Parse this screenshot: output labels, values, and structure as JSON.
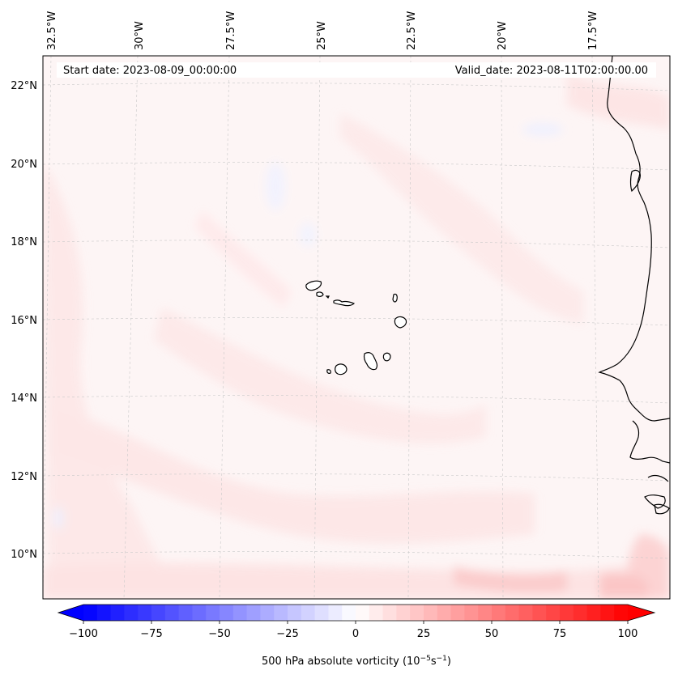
{
  "map": {
    "start_date": "Start date: 2023-08-09_00:00:00",
    "valid_date": "Valid_date: 2023-08-11T02:00:00.00",
    "lon_labels": [
      "32.5°W",
      "30°W",
      "27.5°W",
      "25°W",
      "22.5°W",
      "20°W",
      "17.5°W"
    ],
    "lat_labels": [
      "22°N",
      "20°N",
      "18°N",
      "16°N",
      "14°N",
      "12°N",
      "10°N"
    ],
    "field_tint": "#fdf4f4",
    "coastline_color": "#000000",
    "gridline_color": "#bbbbbb"
  },
  "colorbar": {
    "label_main": "500 hPa absolute vorticity (10",
    "label_exp1": "−5",
    "label_mid": "s",
    "label_exp2": "−1",
    "label_close": ")",
    "tick_labels": [
      "−100",
      "−75",
      "−50",
      "−25",
      "0",
      "25",
      "50",
      "75",
      "100"
    ],
    "min_color": "#0000ff",
    "mid_color": "#ffffff",
    "max_color": "#ff0000"
  }
}
